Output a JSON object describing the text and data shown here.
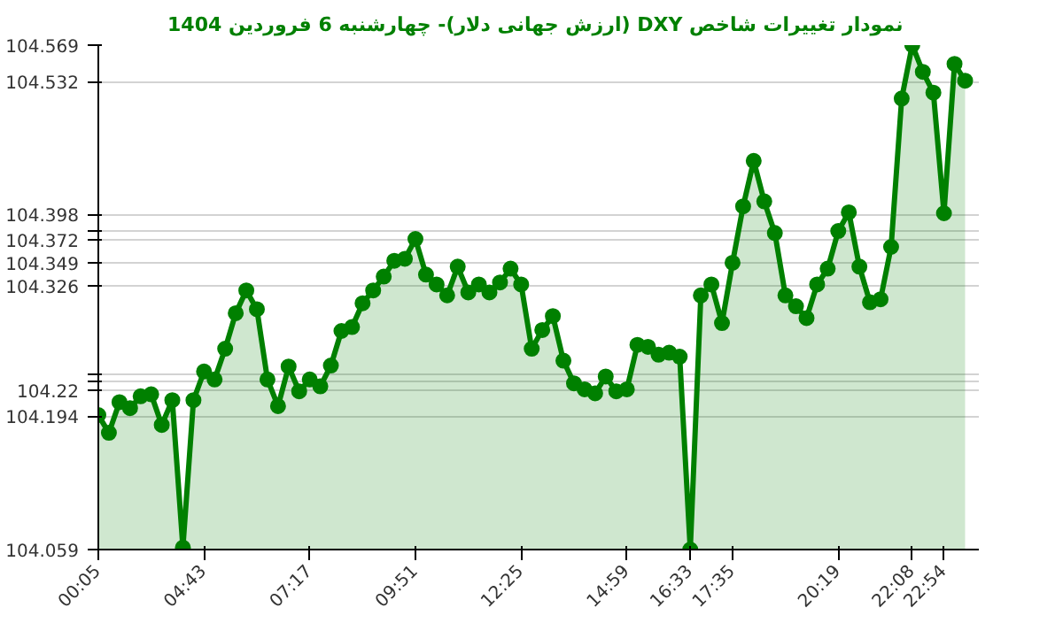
{
  "chart_data": {
    "type": "area",
    "title": "نمودار تغییرات شاخص DXY (ارزش جهانی دلار)- چهارشنبه  6 فروردین 1404",
    "categories": [
      "00:05",
      null,
      null,
      null,
      null,
      null,
      null,
      null,
      null,
      null,
      "04:43",
      null,
      null,
      null,
      null,
      null,
      null,
      null,
      null,
      null,
      "07:17",
      null,
      null,
      null,
      null,
      null,
      null,
      null,
      null,
      null,
      "09:51",
      null,
      null,
      null,
      null,
      null,
      null,
      null,
      null,
      null,
      "12:25",
      null,
      null,
      null,
      null,
      null,
      null,
      null,
      null,
      null,
      "14:59",
      null,
      null,
      null,
      null,
      null,
      "16:33",
      null,
      null,
      null,
      "17:35",
      null,
      null,
      null,
      null,
      null,
      null,
      null,
      null,
      null,
      "20:19",
      null,
      null,
      null,
      null,
      null,
      null,
      "22:08",
      null,
      null,
      "22:54",
      null,
      null
    ],
    "series": [
      {
        "color": "#008000",
        "values": [
          104.195,
          104.177,
          104.208,
          104.202,
          104.214,
          104.216,
          104.185,
          104.21,
          104.061,
          104.21,
          104.239,
          104.231,
          104.262,
          104.298,
          104.321,
          104.302,
          104.231,
          104.204,
          104.244,
          104.219,
          104.231,
          104.224,
          104.245,
          104.28,
          104.284,
          104.308,
          104.321,
          104.335,
          104.351,
          104.353,
          104.373,
          104.337,
          104.327,
          104.316,
          104.345,
          104.319,
          104.327,
          104.319,
          104.329,
          104.343,
          104.327,
          104.262,
          104.281,
          104.295,
          104.25,
          104.227,
          104.221,
          104.217,
          104.234,
          104.219,
          104.221,
          104.266,
          104.264,
          104.256,
          104.258,
          104.254,
          104.059,
          104.316,
          104.327,
          104.288,
          104.349,
          104.406,
          104.452,
          104.411,
          104.379,
          104.316,
          104.305,
          104.293,
          104.327,
          104.343,
          104.381,
          104.4,
          104.345,
          104.309,
          104.312,
          104.365,
          104.515,
          104.569,
          104.542,
          104.521,
          104.399,
          104.55,
          104.533
        ]
      }
    ],
    "ylim": [
      104.059,
      104.569
    ],
    "yticks": [
      104.059,
      104.194,
      {
        "value": 104.22,
        "label": "104.22"
      },
      {
        "value": 104.229,
        "label": null
      },
      {
        "value": 104.237,
        "label": null
      },
      104.326,
      104.349,
      104.372,
      {
        "value": 104.381,
        "label": null
      },
      104.398,
      104.532,
      104.569
    ],
    "grid": "y",
    "marker": "circle",
    "line_style": "solid"
  }
}
